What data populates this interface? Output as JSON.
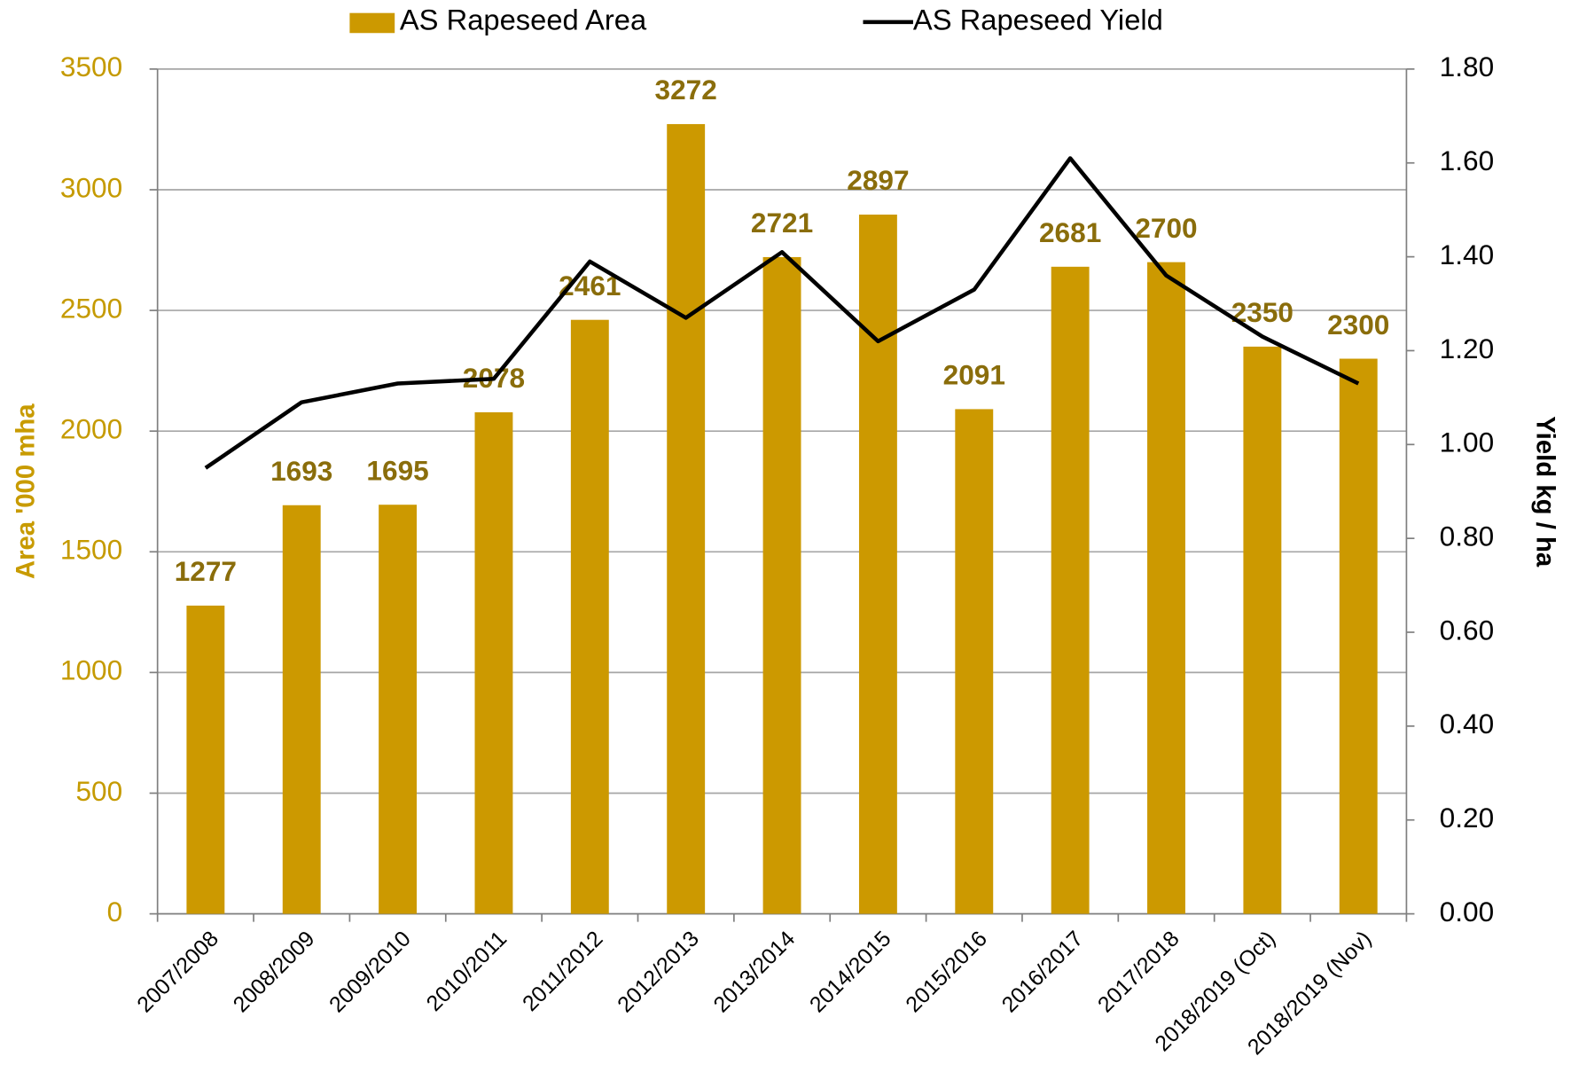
{
  "chart_data": {
    "type": "bar-line",
    "categories": [
      "2007/2008",
      "2008/2009",
      "2009/2010",
      "2010/2011",
      "2011/2012",
      "2012/2013",
      "2013/2014",
      "2014/2015",
      "2015/2016",
      "2016/2017",
      "2017/2018",
      "2018/2019 (Oct)",
      "2018/2019 (Nov)"
    ],
    "series": [
      {
        "name": "AS Rapeseed Area",
        "type": "bar",
        "color": "#cc9900",
        "values": [
          1277,
          1693,
          1695,
          2078,
          2461,
          3272,
          2721,
          2897,
          2091,
          2681,
          2700,
          2350,
          2300
        ]
      },
      {
        "name": "AS Rapeseed Yield",
        "type": "line",
        "axis": "y2",
        "color": "#000000",
        "values": [
          0.95,
          1.09,
          1.13,
          1.14,
          1.39,
          1.27,
          1.41,
          1.22,
          1.33,
          1.61,
          1.36,
          1.23,
          1.13
        ]
      }
    ],
    "ylabel": "Area '000 mha",
    "y2label": "Yield kg / ha",
    "ylim": [
      0,
      3500
    ],
    "yticks": [
      0,
      500,
      1000,
      1500,
      2000,
      2500,
      3000,
      3500
    ],
    "y2lim": [
      0,
      1.8
    ],
    "y2ticks": [
      {
        "value": 0,
        "label": "0.00"
      },
      {
        "value": 0.2,
        "label": "0.20"
      },
      {
        "value": 0.4,
        "label": "0.40"
      },
      {
        "value": 0.6,
        "label": "0.60"
      },
      {
        "value": 0.8,
        "label": "0.80"
      },
      {
        "value": 1,
        "label": "1.00"
      },
      {
        "value": 1.2,
        "label": "1.20"
      },
      {
        "value": 1.4,
        "label": "1.40"
      },
      {
        "value": 1.6,
        "label": "1.60"
      },
      {
        "value": 1.8,
        "label": "1.80"
      }
    ],
    "grid": true,
    "legend": "top"
  }
}
